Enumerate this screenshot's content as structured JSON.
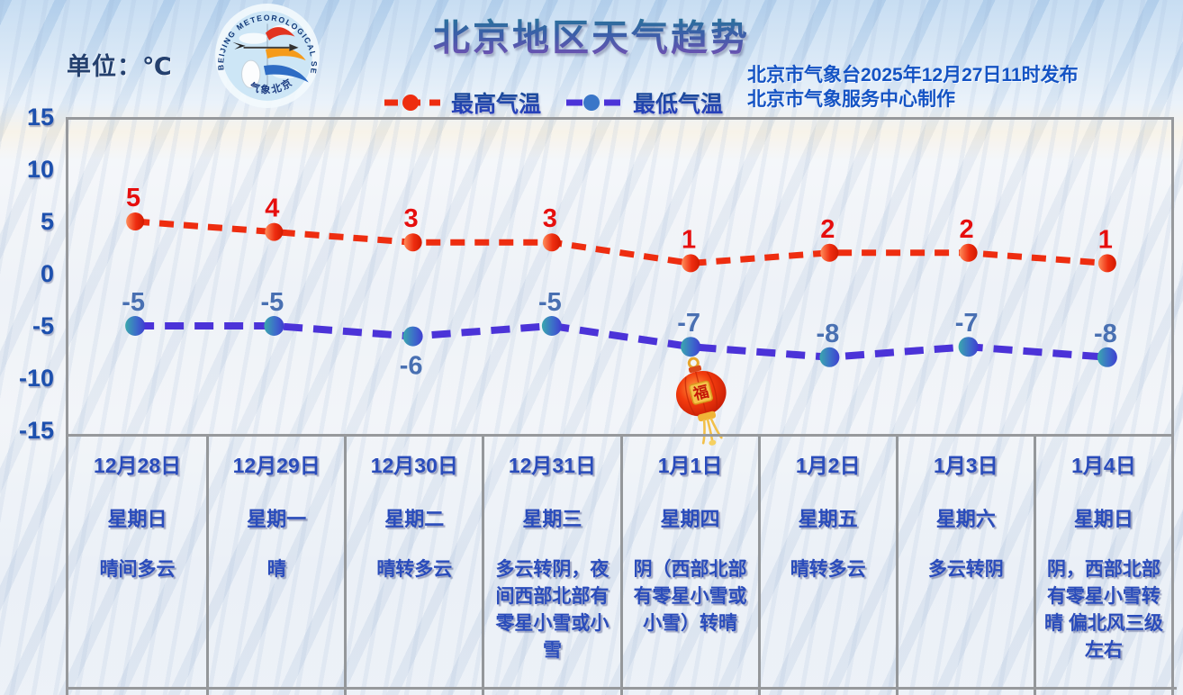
{
  "header": {
    "unit_label": "单位：℃",
    "title": "北京地区天气趋势",
    "issued_line1": "北京市气象台2025年12月27日11时发布",
    "issued_line2": "北京市气象服务中心制作",
    "logo_text_top": "BEIJING METEOROLOGICAL SERVICE",
    "logo_text_bottom": "气象北京"
  },
  "legend": {
    "max": {
      "label": "最高气温",
      "color": "#ee2d10"
    },
    "min": {
      "label": "最低气温",
      "color": "#4b33d8"
    }
  },
  "chart_data": {
    "type": "line",
    "title": "北京地区天气趋势",
    "ylabel": "℃",
    "ylim": [
      -15,
      15
    ],
    "yticks": [
      15,
      10,
      5,
      0,
      -5,
      -10,
      -15
    ],
    "grid": false,
    "legend_position": "top-center",
    "categories": [
      "12月28日",
      "12月29日",
      "12月30日",
      "12月31日",
      "1月1日",
      "1月2日",
      "1月3日",
      "1月4日"
    ],
    "series": [
      {
        "name": "最高气温",
        "values": [
          5,
          4,
          3,
          3,
          1,
          2,
          2,
          1
        ],
        "color": "#ee2d10",
        "label_color": "#e60e0e",
        "label_position": [
          "above",
          "above",
          "above",
          "above",
          "above",
          "above",
          "above",
          "above"
        ]
      },
      {
        "name": "最低气温",
        "values": [
          -5,
          -5,
          -6,
          -5,
          -7,
          -8,
          -7,
          -8
        ],
        "color": "#4b33d8",
        "label_color": "#4970b2",
        "label_position": [
          "above",
          "above",
          "below",
          "above",
          "above",
          "above",
          "above",
          "above"
        ]
      }
    ]
  },
  "days": [
    {
      "date": "12月28日",
      "weekday": "星期日",
      "weather": "晴间多云"
    },
    {
      "date": "12月29日",
      "weekday": "星期一",
      "weather": "晴"
    },
    {
      "date": "12月30日",
      "weekday": "星期二",
      "weather": "晴转多云"
    },
    {
      "date": "12月31日",
      "weekday": "星期三",
      "weather": "多云转阴，夜间西部北部有零星小雪或小雪"
    },
    {
      "date": "1月1日",
      "weekday": "星期四",
      "weather": "阴（西部北部有零星小雪或小雪）转晴"
    },
    {
      "date": "1月2日",
      "weekday": "星期五",
      "weather": "晴转多云"
    },
    {
      "date": "1月3日",
      "weekday": "星期六",
      "weather": "多云转阴"
    },
    {
      "date": "1月4日",
      "weekday": "星期日",
      "weather": "阴，西部北部有零星小雪转晴 偏北风三级左右"
    }
  ],
  "decoration": {
    "lantern_char": "福"
  }
}
